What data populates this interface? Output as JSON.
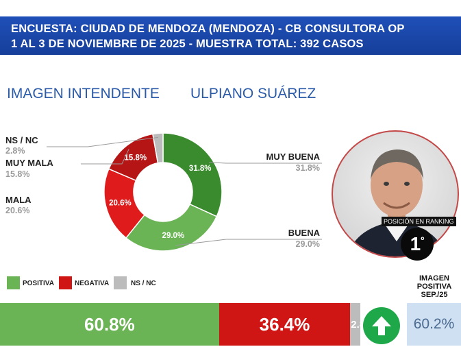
{
  "header": {
    "line1": "ENCUESTA: CIUDAD DE MENDOZA (MENDOZA) - CB CONSULTORA OP",
    "line2": "1 AL 3 DE NOVIEMBRE DE 2025 - MUESTRA TOTAL: 392 CASOS"
  },
  "headings": {
    "left": "IMAGEN INTENDENTE",
    "right": "ULPIANO SUÁREZ"
  },
  "colors": {
    "muy_buena": "#3a8a2e",
    "buena": "#6bb455",
    "mala": "#e01b1b",
    "muy_mala": "#b51515",
    "ns_nc": "#bcbcbc",
    "positiva": "#6bb455",
    "negativa": "#d01515",
    "ns_bar": "#bcbcbc"
  },
  "chart_data": [
    {
      "type": "pie",
      "title": "",
      "slices": [
        {
          "label": "MUY BUENA",
          "value": 31.8,
          "display": "31.8%",
          "color": "#3a8a2e"
        },
        {
          "label": "BUENA",
          "value": 29.0,
          "display": "29.0%",
          "color": "#6bb455"
        },
        {
          "label": "MALA",
          "value": 20.6,
          "display": "20.6%",
          "color": "#e01b1b"
        },
        {
          "label": "MUY MALA",
          "value": 15.8,
          "display": "15.8%",
          "color": "#b51515"
        },
        {
          "label": "NS / NC",
          "value": 2.8,
          "display": "2.8%",
          "color": "#bcbcbc"
        }
      ]
    },
    {
      "type": "bar",
      "stacked": true,
      "legend": [
        "POSITIVA",
        "NEGATIVA",
        "NS / NC"
      ],
      "segments": [
        {
          "label": "POSITIVA",
          "value": 60.8,
          "display": "60.8%",
          "color": "#6bb455"
        },
        {
          "label": "NEGATIVA",
          "value": 36.4,
          "display": "36.4%",
          "color": "#d01515"
        },
        {
          "label": "NS / NC",
          "value": 2.8,
          "display": "2.8%",
          "color": "#bcbcbc"
        }
      ],
      "previous": {
        "title_lines": [
          "IMAGEN",
          "POSITIVA",
          "SEP./25"
        ],
        "value": 60.2,
        "display": "60.2%",
        "trend": "up-arrow-icon"
      }
    }
  ],
  "side_labels": {
    "ns_nc": {
      "label": "NS / NC",
      "value": "2.8%"
    },
    "muy_mala": {
      "label": "MUY MALA",
      "value": "15.8%"
    },
    "mala": {
      "label": "MALA",
      "value": "20.6%"
    },
    "muy_buena": {
      "label": "MUY BUENA",
      "value": "31.8%"
    },
    "buena": {
      "label": "BUENA",
      "value": "29.0%"
    }
  },
  "ranking": {
    "label": "POSICIÓN EN RANKING",
    "position": "1",
    "suffix": "º"
  }
}
